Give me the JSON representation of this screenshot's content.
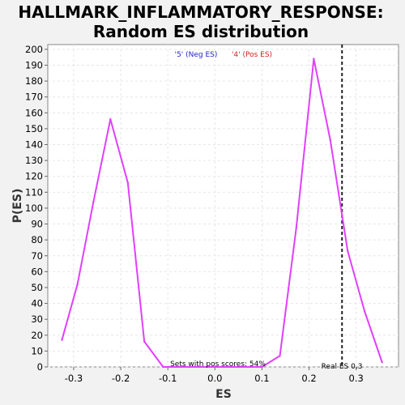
{
  "chart_data": {
    "type": "line",
    "title_line1": "HALLMARK_INFLAMMATORY_RESPONSE:",
    "title_line2": "Random ES distribution",
    "xlabel": "ES",
    "ylabel": "P(ES)",
    "xlim": [
      -0.355,
      0.39
    ],
    "ylim": [
      0,
      203
    ],
    "x_ticks": [
      -0.3,
      -0.2,
      -0.1,
      0.0,
      0.1,
      0.2,
      0.3
    ],
    "x_tick_labels": [
      "-0.3",
      "-0.2",
      "-0.1",
      "0.0",
      "0.1",
      "0.2",
      "0.3"
    ],
    "y_ticks": [
      0,
      10,
      20,
      30,
      40,
      50,
      60,
      70,
      80,
      90,
      100,
      110,
      120,
      130,
      140,
      150,
      160,
      170,
      180,
      190,
      200
    ],
    "grid": true,
    "series": [
      {
        "color": "#e040fb",
        "points": [
          {
            "x": -0.325,
            "y": 17
          },
          {
            "x": -0.292,
            "y": 52
          },
          {
            "x": -0.258,
            "y": 104
          },
          {
            "x": -0.222,
            "y": 156
          },
          {
            "x": -0.185,
            "y": 116
          },
          {
            "x": -0.15,
            "y": 16
          },
          {
            "x": -0.11,
            "y": 0
          },
          {
            "x": 0.1,
            "y": 0
          },
          {
            "x": 0.138,
            "y": 7
          },
          {
            "x": 0.173,
            "y": 88
          },
          {
            "x": 0.21,
            "y": 194
          },
          {
            "x": 0.245,
            "y": 143
          },
          {
            "x": 0.282,
            "y": 73
          },
          {
            "x": 0.318,
            "y": 35
          },
          {
            "x": 0.355,
            "y": 3
          }
        ]
      }
    ],
    "legend": {
      "placement": "top-center",
      "items": [
        {
          "label": "'5' (Neg ES)",
          "color": "#1f1fd4"
        },
        {
          "label": "'4' (Pos ES)",
          "color": "#d41f1f"
        }
      ]
    },
    "real_es": {
      "x": 0.27,
      "label": "Real ES 0.3"
    },
    "annotation": "Sets with pos scores: 54%"
  }
}
